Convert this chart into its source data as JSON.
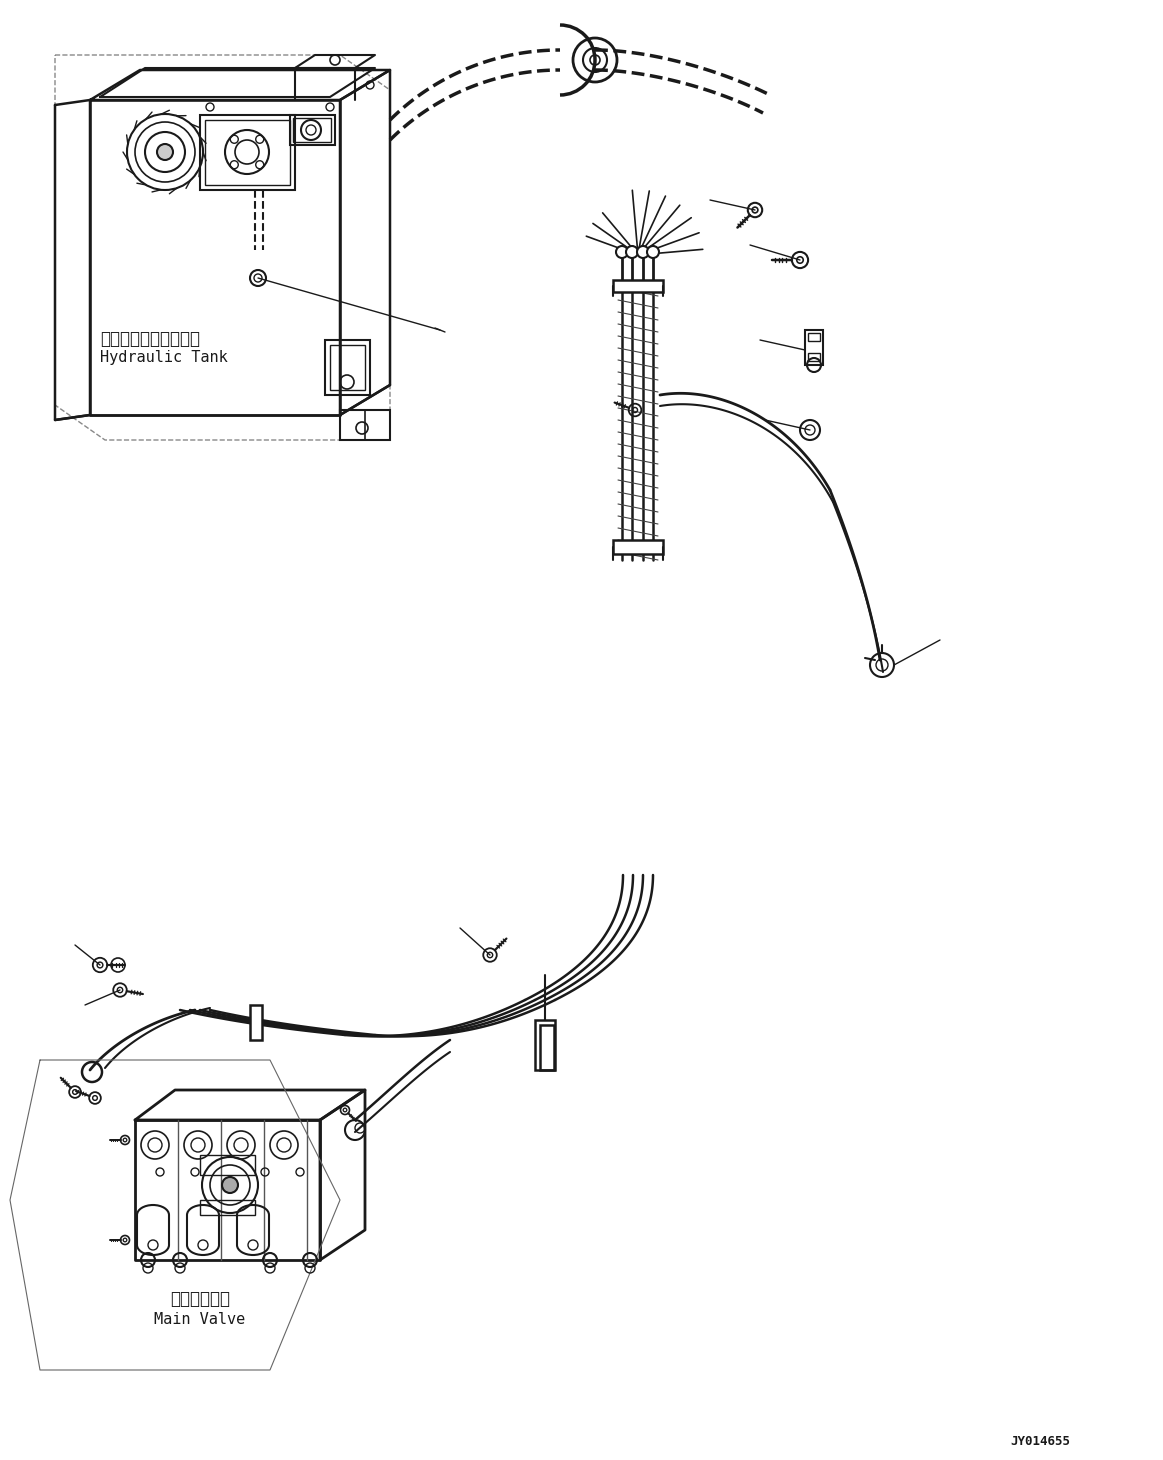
{
  "bg_color": "#ffffff",
  "line_color": "#1a1a1a",
  "figsize": [
    11.63,
    14.6
  ],
  "dpi": 100,
  "doc_number": "JY014655",
  "label_hydraulic_tank_jp": "ハイドロリックタンク",
  "label_hydraulic_tank_en": "Hydraulic Tank",
  "label_main_valve_jp": "メインバルブ",
  "label_main_valve_en": "Main Valve"
}
